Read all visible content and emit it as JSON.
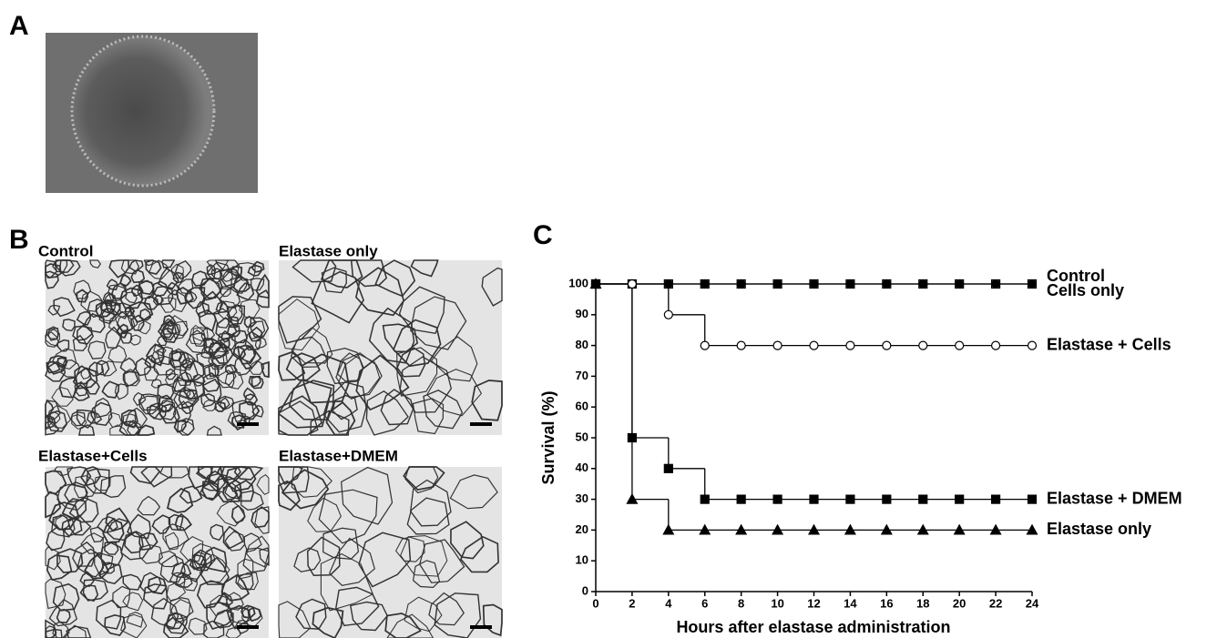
{
  "panels": {
    "A": {
      "label": "A"
    },
    "B": {
      "label": "B",
      "images": [
        {
          "label": "Control"
        },
        {
          "label": "Elastase only"
        },
        {
          "label": "Elastase+Cells"
        },
        {
          "label": "Elastase+DMEM"
        }
      ]
    },
    "C": {
      "label": "C"
    }
  },
  "chart_data": {
    "type": "line",
    "step": true,
    "x_label": "Hours after elastase administration",
    "y_label": "Survival (%)",
    "x": [
      0,
      2,
      4,
      6,
      8,
      10,
      12,
      14,
      16,
      18,
      20,
      22,
      24
    ],
    "series": [
      {
        "name": "Control",
        "color": "#000000",
        "marker": "open-square",
        "values": [
          100,
          100,
          100,
          100,
          100,
          100,
          100,
          100,
          100,
          100,
          100,
          100,
          100
        ]
      },
      {
        "name": "Cells only",
        "color": "#000000",
        "marker": "filled-circle",
        "values": [
          100,
          100,
          100,
          100,
          100,
          100,
          100,
          100,
          100,
          100,
          100,
          100,
          100
        ]
      },
      {
        "name": "Elastase + Cells",
        "color": "#000000",
        "marker": "open-circle",
        "values": [
          100,
          100,
          90,
          80,
          80,
          80,
          80,
          80,
          80,
          80,
          80,
          80,
          80
        ]
      },
      {
        "name": "Elastase + DMEM",
        "color": "#000000",
        "marker": "filled-square",
        "values": [
          100,
          50,
          40,
          30,
          30,
          30,
          30,
          30,
          30,
          30,
          30,
          30,
          30
        ]
      },
      {
        "name": "Elastase only",
        "color": "#000000",
        "marker": "filled-triangle",
        "values": [
          100,
          30,
          20,
          20,
          20,
          20,
          20,
          20,
          20,
          20,
          20,
          20,
          20
        ]
      }
    ],
    "xlim": [
      0,
      24
    ],
    "xticks": [
      0,
      2,
      4,
      6,
      8,
      10,
      12,
      14,
      16,
      18,
      20,
      22,
      24
    ],
    "ylim": [
      0,
      100
    ],
    "yticks": [
      0,
      10,
      20,
      30,
      40,
      50,
      60,
      70,
      80,
      90,
      100
    ],
    "grid": false
  }
}
